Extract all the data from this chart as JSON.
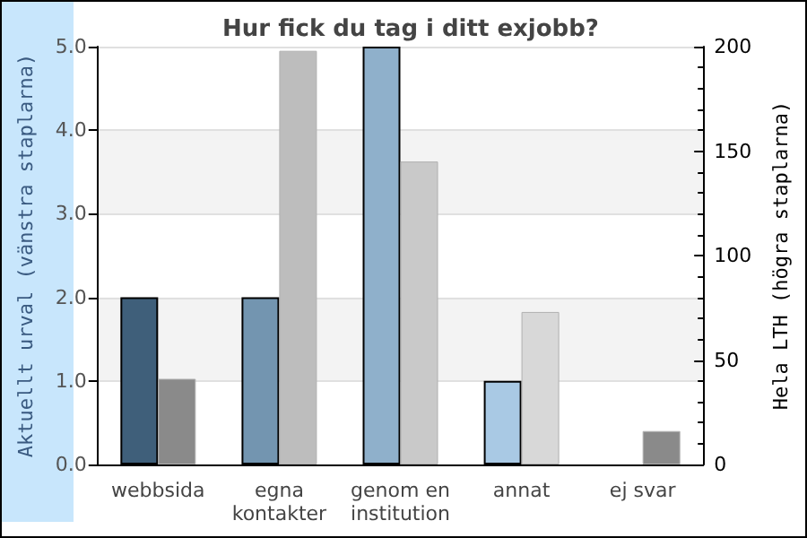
{
  "chart_data": {
    "type": "bar",
    "title": "Hur fick du tag i ditt exjobb?",
    "ylabel": "Aktuellt urval (vänstra staplarna)",
    "y2label": "Hela LTH (högra staplarna)",
    "categories": [
      "webbsida",
      "egna\nkontakter",
      "genom en\ninstitution",
      "annat",
      "ej svar"
    ],
    "series": [
      {
        "colors": [
          "#3f5f7a",
          "#7395b0",
          "#8fb0cb",
          "#a9c9e4",
          "#a9c9e4"
        ],
        "values": [
          2,
          2,
          5,
          1,
          0
        ]
      },
      {
        "axis": "y2",
        "colors": [
          "#8a8a8a",
          "#bdbdbd",
          "#c9c9c9",
          "#d8d8d8",
          "#8a8a8a"
        ],
        "values": [
          41,
          198,
          145,
          73,
          16
        ]
      }
    ],
    "ylim": [
      0,
      5
    ],
    "yticks": [
      {
        "value": 0,
        "label": "0.0"
      },
      {
        "value": 1,
        "label": "1.0"
      },
      {
        "value": 2,
        "label": "2.0"
      },
      {
        "value": 3,
        "label": "3.0"
      },
      {
        "value": 4,
        "label": "4.0"
      },
      {
        "value": 5,
        "label": "5.0"
      }
    ],
    "y2lim": [
      0,
      200
    ],
    "y2ticks": [
      0,
      50,
      100,
      150,
      200
    ],
    "grid": "y"
  }
}
